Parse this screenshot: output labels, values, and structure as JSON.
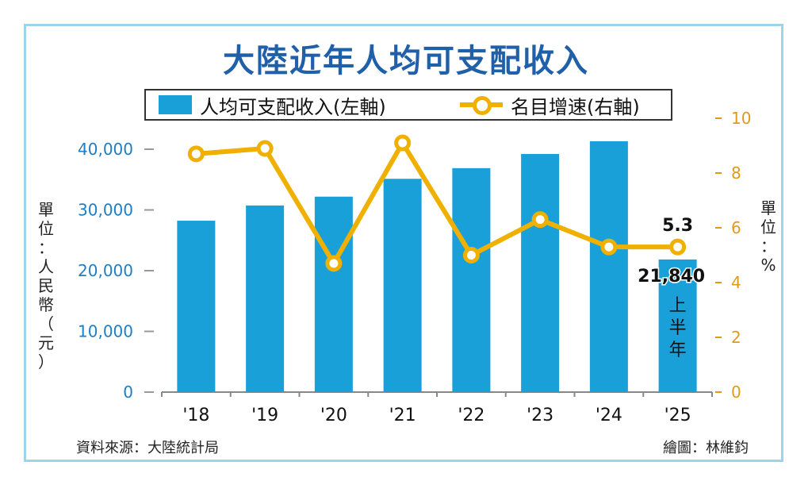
{
  "title": "大陸近年人均可支配收入",
  "legend": {
    "bar_label": "人均可支配收入(左軸)",
    "line_label": "名目增速(右軸)"
  },
  "unit_left": "單位：人民幣（元）",
  "unit_right": "單位：%",
  "source": "資料來源：大陸統計局",
  "credit": "繪圖：林維鈞",
  "colors": {
    "bar": "#1aa0d8",
    "line": "#f0b000",
    "title": "#1f60a8",
    "left_axis": "#1f7dc1",
    "right_axis": "#e09a1a"
  },
  "chart_data": {
    "type": "bar",
    "categories": [
      "'18",
      "'19",
      "'20",
      "'21",
      "'22",
      "'23",
      "'24",
      "'25"
    ],
    "series": [
      {
        "name": "人均可支配收入(左軸)",
        "type": "bar",
        "axis": "left",
        "values": [
          28228,
          30733,
          32189,
          35128,
          36883,
          39218,
          41314,
          21840
        ]
      },
      {
        "name": "名目增速(右軸)",
        "type": "line",
        "axis": "right",
        "values": [
          8.7,
          8.9,
          4.7,
          9.1,
          5.0,
          6.3,
          5.3,
          5.3
        ]
      }
    ],
    "ylim_left": [
      0,
      45000
    ],
    "yticks_left": [
      "0",
      "10,000",
      "20,000",
      "30,000",
      "40,000"
    ],
    "ylim_right": [
      0,
      10
    ],
    "yticks_right": [
      "0",
      "2",
      "4",
      "6",
      "8",
      "10"
    ],
    "annotations": {
      "last_bar_value": "21,840",
      "last_bar_note": "上半年",
      "last_line_value": "5.3"
    }
  }
}
